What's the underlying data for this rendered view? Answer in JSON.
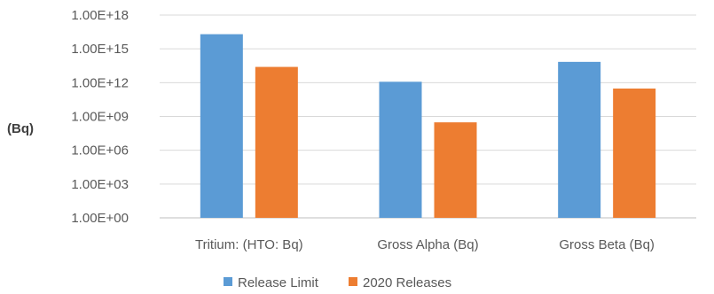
{
  "chart_data": {
    "type": "bar",
    "scale": "log",
    "categories": [
      "Tritium: (HTO: Bq)",
      "Gross Alpha (Bq)",
      "Gross Beta (Bq)"
    ],
    "series": [
      {
        "name": "Release Limit",
        "color": "#5b9bd5",
        "values": [
          2e+16,
          1200000000000.0,
          70000000000000.0
        ]
      },
      {
        "name": "2020 Releases",
        "color": "#ed7d31",
        "values": [
          25000000000000.0,
          300000000.0,
          300000000000.0
        ]
      }
    ],
    "y_ticks": [
      "1.00E+00",
      "1.00E+03",
      "1.00E+06",
      "1.00E+09",
      "1.00E+12",
      "1.00E+15",
      "1.00E+18"
    ],
    "ylabel": "(Bq)",
    "ylim": [
      1,
      1e+18
    ],
    "grid": true,
    "legend_position": "bottom"
  }
}
